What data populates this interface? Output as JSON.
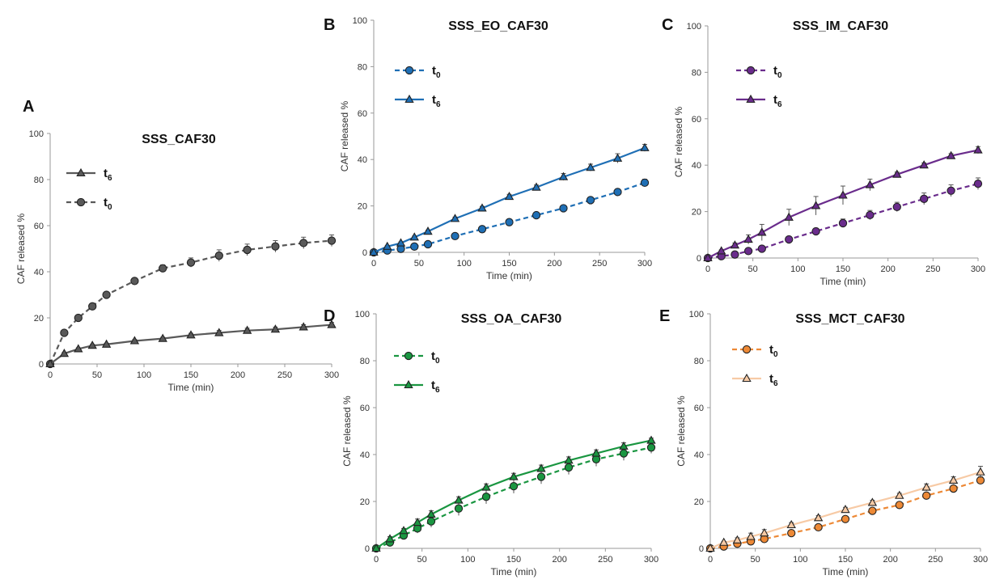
{
  "chart_data": [
    {
      "panel": "A",
      "title": "SSS_CAF30",
      "type": "line",
      "xlabel": "Time (min)",
      "ylabel": "CAF released %",
      "xlim": [
        0,
        300
      ],
      "ylim": [
        0,
        100
      ],
      "xticks": [
        0,
        50,
        100,
        150,
        200,
        250,
        300
      ],
      "yticks": [
        0,
        20,
        40,
        60,
        80,
        100
      ],
      "color": "#595959",
      "legend_order": [
        "t6",
        "t0"
      ],
      "legend_placement": "upper-left",
      "x": [
        0,
        15,
        30,
        45,
        60,
        90,
        120,
        150,
        180,
        210,
        240,
        270,
        300
      ],
      "series": [
        {
          "name": "t0",
          "marker": "circle",
          "line": "dashed",
          "values": [
            0,
            13.5,
            20,
            25,
            30,
            36,
            41.5,
            44,
            47,
            49.5,
            51,
            52.5,
            53.5
          ],
          "errors": [
            0,
            0.5,
            0.8,
            0.8,
            1,
            1,
            1.5,
            2,
            2.5,
            2.5,
            2.5,
            2.5,
            2.5
          ]
        },
        {
          "name": "t6",
          "marker": "triangle",
          "line": "solid",
          "values": [
            0,
            4.5,
            6.5,
            8,
            8.5,
            10,
            11,
            12.5,
            13.5,
            14.5,
            15,
            16,
            17
          ],
          "errors": [
            0,
            0.5,
            0.5,
            0.5,
            0.5,
            0.6,
            0.6,
            0.8,
            1,
            1,
            1,
            1,
            1
          ]
        }
      ]
    },
    {
      "panel": "B",
      "title": "SSS_EO_CAF30",
      "type": "line",
      "xlabel": "Time (min)",
      "ylabel": "CAF released %",
      "xlim": [
        0,
        300
      ],
      "ylim": [
        0,
        100
      ],
      "xticks": [
        0,
        50,
        100,
        150,
        200,
        250,
        300
      ],
      "yticks": [
        0,
        20,
        40,
        60,
        80,
        100
      ],
      "color": "#1f6fb5",
      "legend_order": [
        "t0",
        "t6"
      ],
      "legend_placement": "upper-left",
      "x": [
        0,
        15,
        30,
        45,
        60,
        90,
        120,
        150,
        180,
        210,
        240,
        270,
        300
      ],
      "series": [
        {
          "name": "t0",
          "marker": "circle",
          "line": "dashed",
          "values": [
            0,
            0.8,
            1.5,
            2.5,
            3.5,
            7,
            10,
            13,
            16,
            19,
            22.5,
            26,
            30
          ],
          "errors": [
            0,
            0.3,
            0.3,
            0.4,
            0.4,
            0.5,
            0.5,
            0.6,
            0.8,
            0.8,
            1,
            1.3,
            1.5
          ]
        },
        {
          "name": "t6",
          "marker": "triangle",
          "line": "solid",
          "values": [
            0,
            2.5,
            4,
            6.5,
            9,
            14.5,
            19,
            24,
            28,
            32.5,
            36.5,
            40.5,
            45
          ],
          "errors": [
            0,
            0.4,
            0.5,
            0.5,
            0.6,
            0.7,
            0.8,
            1,
            1,
            1.5,
            1.5,
            2,
            1.5
          ]
        }
      ]
    },
    {
      "panel": "C",
      "title": "SSS_IM_CAF30",
      "type": "line",
      "xlabel": "Time (min)",
      "ylabel": "CAF released %",
      "xlim": [
        0,
        300
      ],
      "ylim": [
        0,
        100
      ],
      "xticks": [
        0,
        50,
        100,
        150,
        200,
        250,
        300
      ],
      "yticks": [
        0,
        20,
        40,
        60,
        80,
        100
      ],
      "color": "#6a2c8c",
      "legend_order": [
        "t0",
        "t6"
      ],
      "legend_placement": "upper-left",
      "x": [
        0,
        15,
        30,
        45,
        60,
        90,
        120,
        150,
        180,
        210,
        240,
        270,
        300
      ],
      "series": [
        {
          "name": "t0",
          "marker": "circle",
          "line": "dashed",
          "values": [
            0,
            0.8,
            1.5,
            3,
            4,
            8,
            11.5,
            15,
            18.5,
            22,
            25.5,
            29,
            32
          ],
          "errors": [
            0,
            0.5,
            0.5,
            0.8,
            1,
            1,
            1.3,
            1.8,
            2,
            2,
            2.5,
            2.5,
            2.5
          ]
        },
        {
          "name": "t6",
          "marker": "triangle",
          "line": "solid",
          "values": [
            0,
            3,
            5.5,
            8,
            11,
            17.5,
            22.5,
            27,
            31.5,
            36,
            40,
            44,
            46.5
          ],
          "errors": [
            0,
            0.5,
            1,
            2,
            3.5,
            3.5,
            4,
            4,
            2.5,
            1,
            1,
            1,
            1.5
          ]
        }
      ]
    },
    {
      "panel": "D",
      "title": "SSS_OA_CAF30",
      "type": "line",
      "xlabel": "Time (min)",
      "ylabel": "CAF released %",
      "xlim": [
        0,
        300
      ],
      "ylim": [
        0,
        100
      ],
      "xticks": [
        0,
        50,
        100,
        150,
        200,
        250,
        300
      ],
      "yticks": [
        0,
        20,
        40,
        60,
        80,
        100
      ],
      "color": "#1a9641",
      "legend_order": [
        "t0",
        "t6"
      ],
      "legend_placement": "upper-left",
      "x": [
        0,
        15,
        30,
        45,
        60,
        90,
        120,
        150,
        180,
        210,
        240,
        270,
        300
      ],
      "series": [
        {
          "name": "t0",
          "marker": "circle",
          "line": "dashed",
          "values": [
            0,
            2.5,
            5.5,
            8.5,
            11.5,
            17,
            22,
            26.5,
            30.5,
            34.5,
            38,
            40.5,
            43
          ],
          "errors": [
            0,
            1,
            1.5,
            2,
            2.5,
            3,
            3,
            3,
            3,
            3,
            3,
            3,
            2.5
          ]
        },
        {
          "name": "t6",
          "marker": "triangle",
          "line": "solid",
          "values": [
            0,
            4,
            7.5,
            11,
            14.5,
            20.5,
            26,
            30.5,
            34,
            37.5,
            40.5,
            43.5,
            46
          ],
          "errors": [
            0,
            1,
            1,
            1.5,
            1.5,
            1.5,
            1.5,
            1.5,
            1.5,
            1.5,
            1.5,
            1.5,
            1
          ]
        }
      ]
    },
    {
      "panel": "E",
      "title": "SSS_MCT_CAF30",
      "type": "line",
      "xlabel": "Time (min)",
      "ylabel": "CAF released %",
      "xlim": [
        0,
        300
      ],
      "ylim": [
        0,
        100
      ],
      "xticks": [
        0,
        50,
        100,
        150,
        200,
        250,
        300
      ],
      "yticks": [
        0,
        20,
        40,
        60,
        80,
        100
      ],
      "color": "#ed8936",
      "legend_order": [
        "t0",
        "t6"
      ],
      "legend_placement": "upper-left",
      "x": [
        0,
        15,
        30,
        45,
        60,
        90,
        120,
        150,
        180,
        210,
        240,
        270,
        300
      ],
      "series": [
        {
          "name": "t0",
          "marker": "circle",
          "line": "dashed",
          "values": [
            0,
            0.8,
            2,
            3,
            4,
            6.5,
            9,
            12.5,
            16,
            18.5,
            22.5,
            25.5,
            29
          ],
          "errors": [
            0,
            0.3,
            0.5,
            0.5,
            0.5,
            0.5,
            0.5,
            0.8,
            0.8,
            1,
            1,
            1,
            1.5
          ]
        },
        {
          "name": "t6",
          "marker": "triangle",
          "line": "solid",
          "values": [
            0,
            2.5,
            3.5,
            5,
            6.5,
            10,
            13,
            16.5,
            19.5,
            22.5,
            26,
            29,
            32.5
          ],
          "errors": [
            0,
            0.5,
            1,
            1.5,
            1.5,
            1,
            1,
            1,
            1,
            1,
            1.5,
            1.5,
            2.5
          ]
        }
      ]
    }
  ]
}
